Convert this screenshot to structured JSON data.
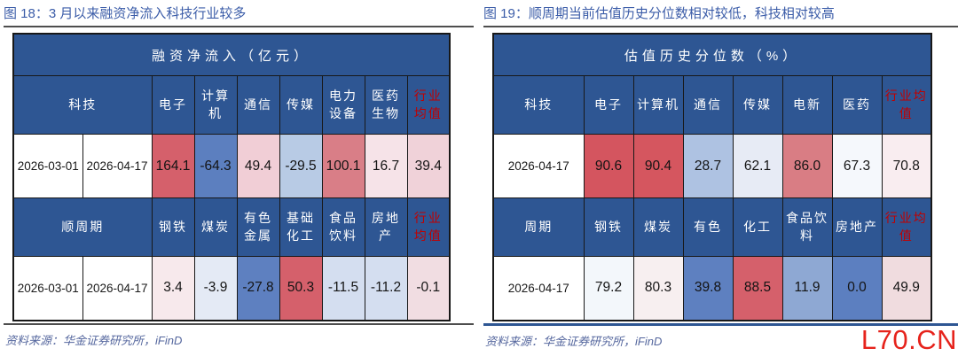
{
  "colors": {
    "title-blue": "#3b5ca8",
    "header-bg": "#2e5693",
    "header-text": "#ffffff",
    "avg-red": "#c00000",
    "source-blue": "#55679e",
    "watermark-red": "#e6231c"
  },
  "watermark": "L70.CN",
  "figures": [
    {
      "title": "图 18：3 月以来融资净流入科技行业较多",
      "table_title": "融资净流入（亿元）",
      "source": "资料来源：华金证券研究所，iFinD",
      "sections": [
        {
          "group": "科技",
          "columns": [
            "电子",
            "计算机",
            "通信",
            "传媒",
            "电力设备",
            "医药生物",
            "行业均值"
          ],
          "dates": [
            "2026-03-01",
            "2026-04-17"
          ],
          "values": [
            "164.1",
            "-64.3",
            "49.4",
            "-29.5",
            "100.1",
            "16.7",
            "39.4"
          ],
          "cell_colors": [
            "#d5606b",
            "#5c7fbf",
            "#f1ced6",
            "#b8cbe5",
            "#d97e87",
            "#f6e3e8",
            "#f0d2d9"
          ]
        },
        {
          "group": "顺周期",
          "columns": [
            "钢铁",
            "煤炭",
            "有色金属",
            "基础化工",
            "食品饮料",
            "房地产",
            "行业均值"
          ],
          "dates": [
            "2026-03-01",
            "2026-04-17"
          ],
          "values": [
            "3.4",
            "-3.9",
            "-27.8",
            "50.3",
            "-11.5",
            "-11.2",
            "-0.1"
          ],
          "cell_colors": [
            "#f7e9ec",
            "#e4eaf5",
            "#5e80c0",
            "#d5606b",
            "#d4def0",
            "#d4def0",
            "#f1dde2"
          ]
        }
      ]
    },
    {
      "title": "图 19：顺周期当前估值历史分位数相对较低，科技相对较高",
      "table_title": "估值历史分位数（%）",
      "source": "资料来源：华金证券研究所，iFinD",
      "sections": [
        {
          "group": "科技",
          "columns": [
            "电子",
            "计算机",
            "通信",
            "传媒",
            "电新",
            "医药",
            "行业均值"
          ],
          "dates": [
            "2026-04-17"
          ],
          "values": [
            "90.6",
            "90.4",
            "28.7",
            "62.1",
            "86.0",
            "67.3",
            "70.8"
          ],
          "cell_colors": [
            "#d4555f",
            "#d5565f",
            "#aec2e2",
            "#e7ebf5",
            "#d97d84",
            "#f5f8fc",
            "#f9edf0"
          ]
        },
        {
          "group": "周期",
          "columns": [
            "钢铁",
            "煤炭",
            "有色",
            "化工",
            "食品饮料",
            "房地产",
            "行业均值"
          ],
          "dates": [
            "2026-04-17"
          ],
          "values": [
            "79.2",
            "80.3",
            "39.8",
            "88.5",
            "11.9",
            "0.0",
            "49.9"
          ],
          "cell_colors": [
            "#f3f7fb",
            "#f7eff0",
            "#5e80c0",
            "#d5606b",
            "#8ea8d3",
            "#5c7fc0",
            "#f0dcdf"
          ]
        }
      ]
    }
  ]
}
